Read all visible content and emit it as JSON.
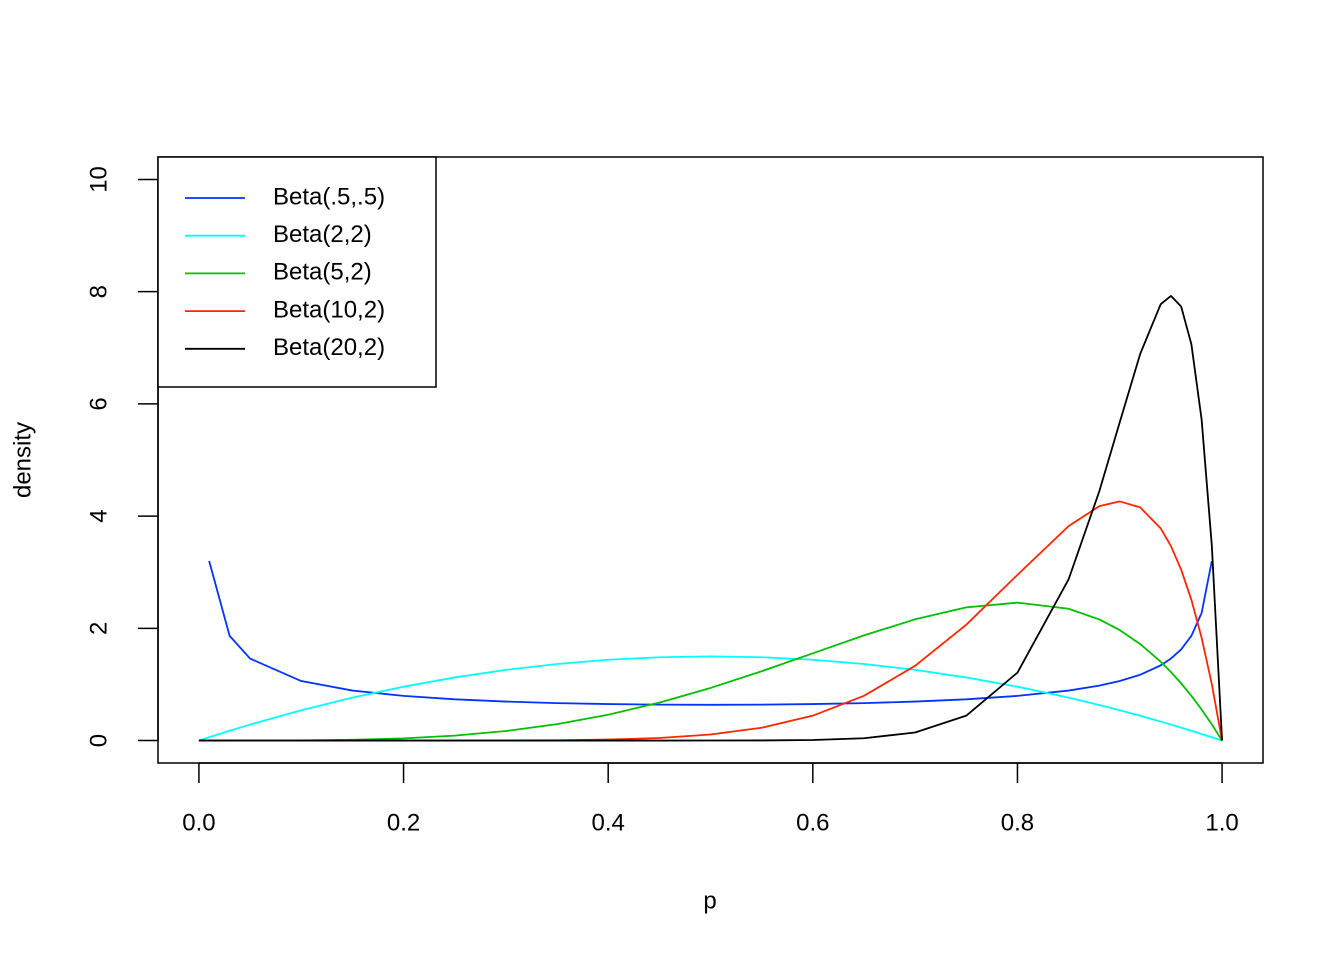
{
  "chart_data": {
    "type": "line",
    "xlabel": "p",
    "ylabel": "density",
    "x": [
      0,
      0.01,
      0.03,
      0.05,
      0.1,
      0.15,
      0.2,
      0.25,
      0.3,
      0.35,
      0.4,
      0.45,
      0.5,
      0.55,
      0.6,
      0.65,
      0.7,
      0.75,
      0.8,
      0.85,
      0.88,
      0.9,
      0.92,
      0.94,
      0.95,
      0.96,
      0.97,
      0.98,
      0.99,
      1
    ],
    "series": [
      {
        "name": "Beta(.5,.5)",
        "color": "#0433ff",
        "values": [
          null,
          3.2,
          1.866,
          1.461,
          1.061,
          0.891,
          0.796,
          0.735,
          0.695,
          0.667,
          0.65,
          0.64,
          0.637,
          0.64,
          0.65,
          0.667,
          0.695,
          0.735,
          0.796,
          0.891,
          0.979,
          1.061,
          1.173,
          1.34,
          1.461,
          1.624,
          1.866,
          2.274,
          3.2,
          null
        ]
      },
      {
        "name": "Beta(2,2)",
        "color": "#00fdff",
        "values": [
          0,
          0.0594,
          0.1746,
          0.285,
          0.54,
          0.765,
          0.96,
          1.125,
          1.26,
          1.365,
          1.44,
          1.485,
          1.5,
          1.485,
          1.44,
          1.365,
          1.26,
          1.125,
          0.96,
          0.765,
          0.6336,
          0.54,
          0.4416,
          0.3384,
          0.285,
          0.2304,
          0.1746,
          0.1176,
          0.0594,
          0
        ]
      },
      {
        "name": "Beta(5,2)",
        "color": "#00c000",
        "values": [
          0,
          0,
          0,
          0.0002,
          0.0027,
          0.0129,
          0.0384,
          0.0879,
          0.1701,
          0.2926,
          0.4608,
          0.6766,
          0.9375,
          1.2353,
          1.5552,
          1.8743,
          2.1609,
          2.373,
          2.4576,
          2.349,
          2.1589,
          1.9683,
          1.7193,
          1.4053,
          1.2218,
          1.0192,
          0.7968,
          0.5534,
          0.2882,
          0
        ]
      },
      {
        "name": "Beta(10,2)",
        "color": "#ff2600",
        "values": [
          0,
          0,
          0,
          0,
          0,
          0,
          0,
          0.0003,
          0.0015,
          0.0056,
          0.0173,
          0.0458,
          0.1074,
          0.228,
          0.4434,
          0.7974,
          1.3317,
          2.0648,
          2.9528,
          3.8217,
          4.1775,
          4.2616,
          4.155,
          3.7818,
          3.4664,
          3.0471,
          2.5088,
          1.8342,
          1.0049,
          0
        ]
      },
      {
        "name": "Beta(20,2)",
        "color": "#000000",
        "values": [
          0,
          0,
          0,
          0,
          0,
          0,
          0,
          0,
          0,
          0,
          0,
          0,
          0.0004,
          0.0022,
          0.0102,
          0.041,
          0.1436,
          0.444,
          1.2106,
          2.8728,
          4.4422,
          5.6736,
          6.8915,
          7.7773,
          7.9244,
          7.735,
          7.0637,
          5.7224,
          3.4699,
          0
        ]
      }
    ],
    "xlim": [
      -0.04,
      1.04
    ],
    "ylim": [
      -0.4,
      10.4
    ],
    "xticks": [
      {
        "value": 0,
        "label": "0.0"
      },
      0.2,
      0.4,
      0.6,
      0.8,
      {
        "value": 1,
        "label": "1.0"
      }
    ],
    "yticks": [
      0,
      2,
      4,
      6,
      8,
      10
    ],
    "legend": "topleft"
  }
}
